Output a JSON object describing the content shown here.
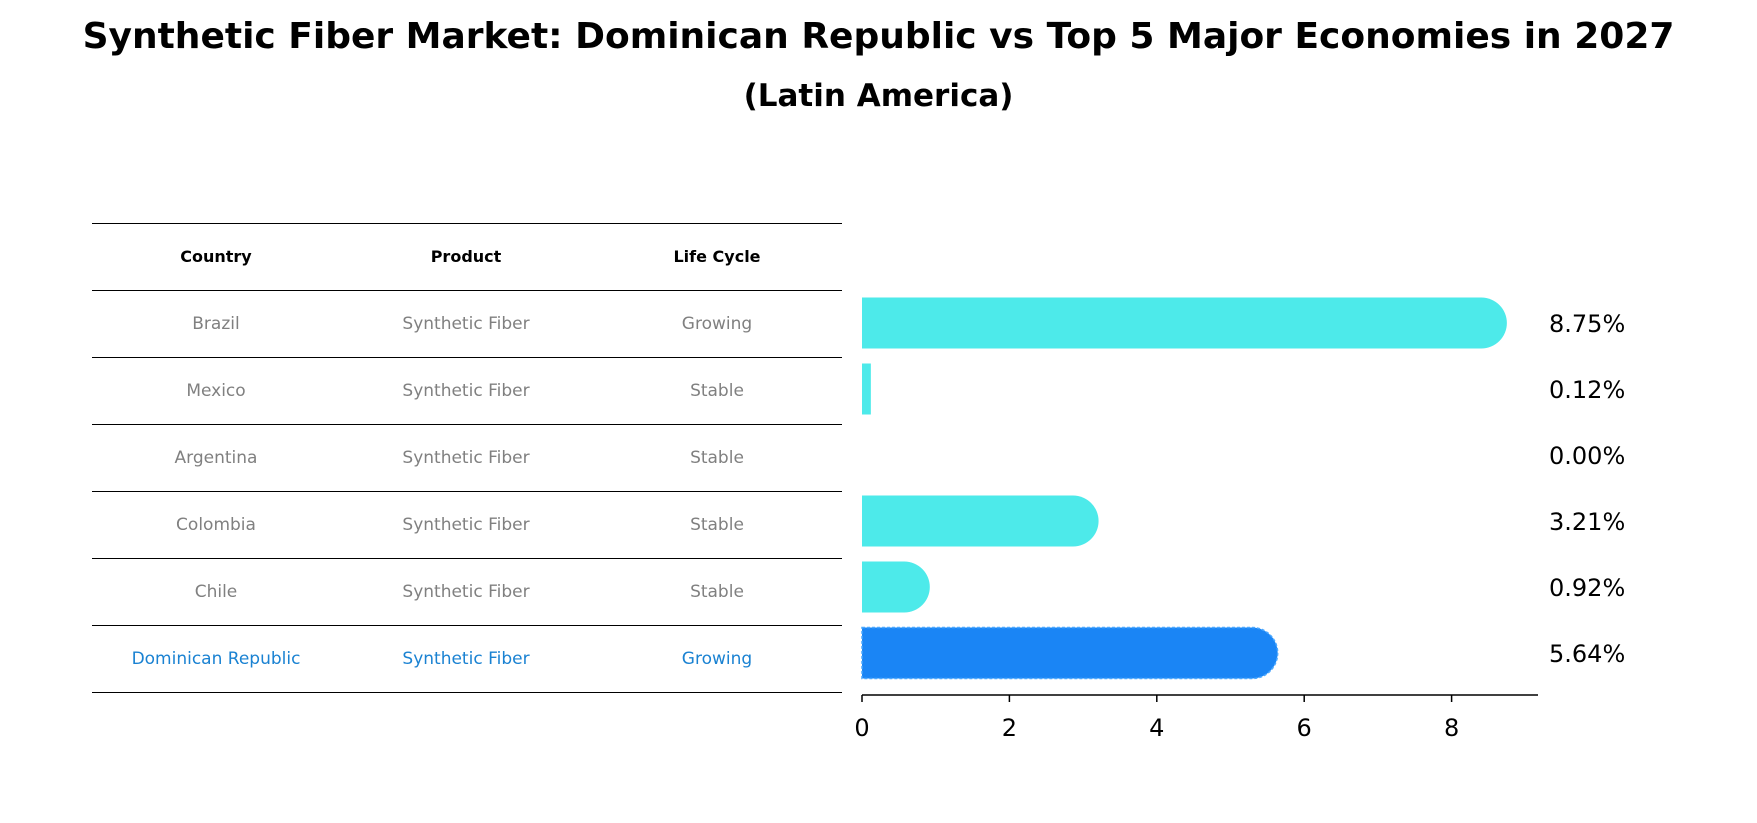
{
  "title": "Synthetic Fiber Market: Dominican Republic vs Top 5 Major Economies in 2027",
  "subtitle": "(Latin America)",
  "table": {
    "headers": [
      "Country",
      "Product",
      "Life Cycle"
    ],
    "rows": [
      {
        "country": "Brazil",
        "product": "Synthetic Fiber",
        "life_cycle": "Growing"
      },
      {
        "country": "Mexico",
        "product": "Synthetic Fiber",
        "life_cycle": "Stable"
      },
      {
        "country": "Argentina",
        "product": "Synthetic Fiber",
        "life_cycle": "Stable"
      },
      {
        "country": "Colombia",
        "product": "Synthetic Fiber",
        "life_cycle": "Stable"
      },
      {
        "country": "Chile",
        "product": "Synthetic Fiber",
        "life_cycle": "Stable"
      },
      {
        "country": "Dominican Republic",
        "product": "Synthetic Fiber",
        "life_cycle": "Growing"
      }
    ]
  },
  "chart_data": {
    "type": "bar",
    "orientation": "horizontal",
    "title": "Synthetic Fiber Market: Dominican Republic vs Top 5 Major Economies in 2027",
    "subtitle": "(Latin America)",
    "categories": [
      "Brazil",
      "Mexico",
      "Argentina",
      "Colombia",
      "Chile",
      "Dominican Republic"
    ],
    "values": [
      8.75,
      0.12,
      0.0,
      3.21,
      0.92,
      5.64
    ],
    "value_labels": [
      "8.75%",
      "0.12%",
      "0.00%",
      "3.21%",
      "0.92%",
      "5.64%"
    ],
    "highlight": "Dominican Republic",
    "xlim": [
      0,
      9.2
    ],
    "xticks": [
      0,
      2,
      4,
      6,
      8
    ],
    "xlabel": "",
    "ylabel": "",
    "grid": false,
    "colors": {
      "default": "#4deaea",
      "highlight": "#1a85f5",
      "text_muted": "#808080",
      "text_highlight": "#1a82d2"
    }
  }
}
